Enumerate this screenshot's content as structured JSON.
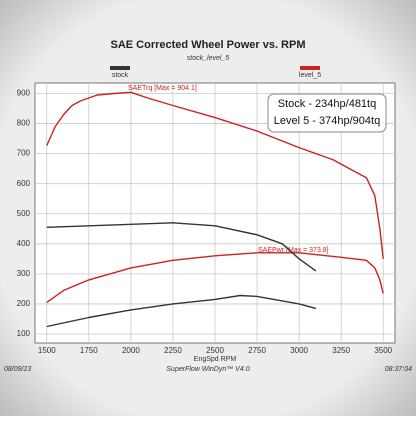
{
  "chart_data": {
    "type": "line",
    "title": "SAE Corrected Wheel Power vs. RPM",
    "subtitle": "stock_level_5",
    "xlabel": "EngSpd RPM",
    "footer_left": "08/09/23",
    "footer_center": "SuperFlow WinDyn™ V4.0",
    "footer_right": "08:37:04",
    "legend": [
      {
        "name": "stock",
        "color": "#333333"
      },
      {
        "name": "level_5",
        "color": "#cc2222"
      }
    ],
    "annotations": [
      "Stock - 234hp/481tq",
      "Level 5 - 374hp/904tq",
      "SAETrq [Max = 904.1]",
      "SAEPwr [Max = 373.8]"
    ],
    "xlim": [
      1430,
      3570
    ],
    "xticks": [
      1500,
      1750,
      2000,
      2250,
      2500,
      2750,
      3000,
      3250,
      3500
    ],
    "ylim": [
      70,
      935
    ],
    "yticks": [
      100,
      200,
      300,
      400,
      500,
      600,
      700,
      800,
      900
    ],
    "grid": true,
    "series": [
      {
        "color": "#cc2222",
        "x": [
          1500,
          1550,
          1600,
          1650,
          1700,
          1800,
          1900,
          2000,
          2100,
          2250,
          2500,
          2750,
          3000,
          3200,
          3300,
          3400,
          3450,
          3480,
          3500
        ],
        "values": [
          727,
          790,
          830,
          860,
          875,
          895,
          900,
          904,
          885,
          860,
          820,
          775,
          720,
          680,
          650,
          620,
          560,
          450,
          350
        ]
      },
      {
        "color": "#cc2222",
        "x": [
          1500,
          1600,
          1750,
          2000,
          2250,
          2500,
          2750,
          3000,
          3250,
          3400,
          3450,
          3480,
          3500
        ],
        "values": [
          205,
          245,
          280,
          320,
          345,
          360,
          370,
          370,
          355,
          345,
          320,
          280,
          235
        ]
      },
      {
        "color": "#333333",
        "x": [
          1500,
          1750,
          2000,
          2250,
          2500,
          2750,
          2900,
          3000,
          3100
        ],
        "values": [
          455,
          460,
          465,
          470,
          460,
          430,
          400,
          350,
          310
        ]
      },
      {
        "color": "#333333",
        "x": [
          1500,
          1750,
          2000,
          2250,
          2500,
          2650,
          2750,
          3000,
          3100
        ],
        "values": [
          125,
          155,
          180,
          200,
          215,
          228,
          225,
          200,
          185
        ]
      }
    ]
  }
}
